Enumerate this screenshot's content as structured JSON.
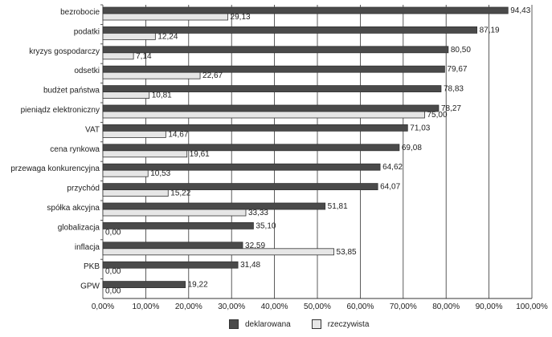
{
  "chart_data": {
    "type": "bar",
    "orientation": "horizontal",
    "categories": [
      "bezrobocie",
      "podatki",
      "kryzys gospodarczy",
      "odsetki",
      "budżet państwa",
      "pieniądz elektroniczny",
      "VAT",
      "cena rynkowa",
      "przewaga konkurencyjna",
      "przychód",
      "spółka akcyjna",
      "globalizacja",
      "inflacja",
      "PKB",
      "GPW"
    ],
    "series": [
      {
        "name": "deklarowana",
        "color": "#4a4a4a",
        "values": [
          94.43,
          87.19,
          80.5,
          79.67,
          78.83,
          78.27,
          71.03,
          69.08,
          64.62,
          64.07,
          51.81,
          35.1,
          32.59,
          31.48,
          19.22
        ],
        "labels": [
          "94,43",
          "87,19",
          "80,50",
          "79,67",
          "78,83",
          "78,27",
          "71,03",
          "69,08",
          "64,62",
          "64,07",
          "51,81",
          "35,10",
          "32,59",
          "31,48",
          "19,22"
        ]
      },
      {
        "name": "rzeczywista",
        "color": "#e6e6e6",
        "values": [
          29.13,
          12.24,
          7.14,
          22.67,
          10.81,
          75.0,
          14.67,
          19.61,
          10.53,
          15.22,
          33.33,
          0,
          53.85,
          0,
          0
        ],
        "labels": [
          "29,13",
          "12,24",
          "7,14",
          "22,67",
          "10,81",
          "75,00",
          "14,67",
          "19,61",
          "10,53",
          "15,22",
          "33,33",
          "0,00",
          "53,85",
          "0,00",
          "0,00"
        ]
      }
    ],
    "x_ticks": [
      "0,00%",
      "10,00%",
      "20,00%",
      "30,00%",
      "40,00%",
      "50,00%",
      "60,00%",
      "70,00%",
      "80,00%",
      "90,00%",
      "100,00%"
    ],
    "xlim": [
      0,
      100
    ],
    "grid": true,
    "legend_position": "bottom"
  }
}
